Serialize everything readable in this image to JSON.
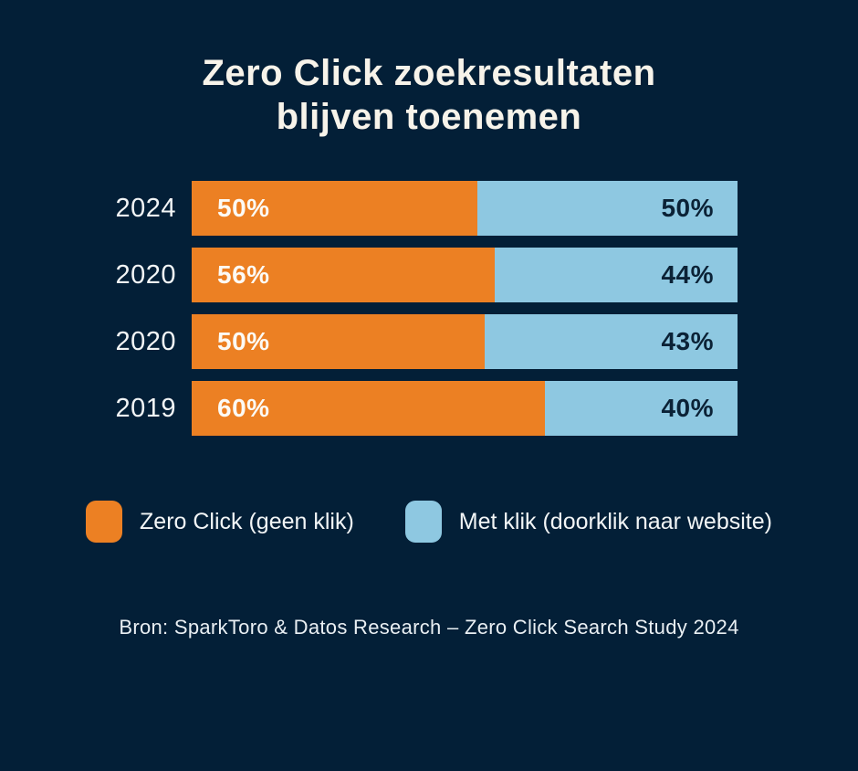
{
  "title": {
    "line1": "Zero Click zoekresultaten",
    "line2": "blijven toenemen"
  },
  "source": "Bron: SparkToro & Datos Research – Zero Click Search Study 2024",
  "colors": {
    "background": "#031F37",
    "zero_click_orange": "#EC8023",
    "met_klik_blue": "#8EC8E1",
    "title_text": "#F7F3EA",
    "dark_value_text": "#0B2236"
  },
  "chart_data": {
    "type": "bar",
    "orientation": "horizontal",
    "stacked": true,
    "title": "Zero Click zoekresultaten blijven toenemen",
    "categories": [
      "2024",
      "2020",
      "2020",
      "2019"
    ],
    "series": [
      {
        "name": "Zero Click (geen klik)",
        "color": "#EC8023",
        "values": [
          50,
          56,
          50,
          60
        ]
      },
      {
        "name": "Met klik (doorklik naar website)",
        "color": "#8EC8E1",
        "values": [
          50,
          44,
          43,
          40
        ]
      }
    ],
    "value_labels": [
      [
        "50%",
        "50%"
      ],
      [
        "56%",
        "44%"
      ],
      [
        "50%",
        "43%"
      ],
      [
        "60%",
        "40%"
      ]
    ],
    "display_split_pct": [
      52.4,
      55.5,
      53.7,
      64.7
    ],
    "xlim": [
      0,
      100
    ],
    "grid": false,
    "legend_position": "bottom",
    "xlabel": "",
    "ylabel": ""
  }
}
